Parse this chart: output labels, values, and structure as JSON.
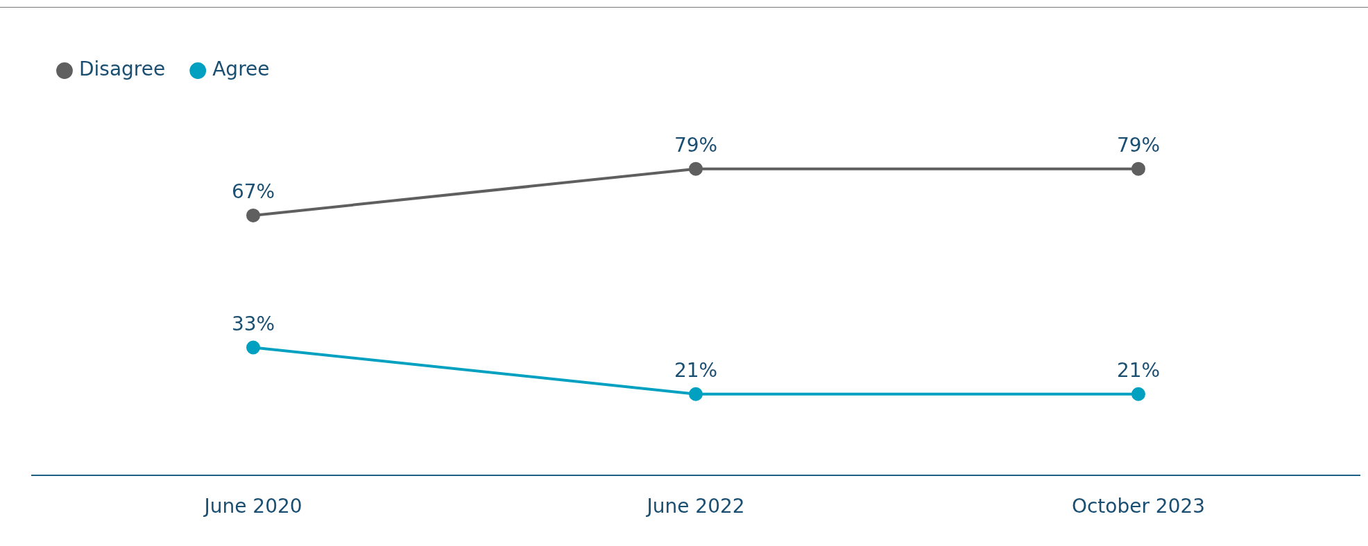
{
  "chart_data": {
    "type": "line",
    "categories": [
      "June 2020",
      "June 2022",
      "October 2023"
    ],
    "series": [
      {
        "name": "Disagree",
        "color": "#5f5f5f",
        "values": [
          67,
          79,
          79
        ],
        "value_labels": [
          "67%",
          "79%",
          "79%"
        ]
      },
      {
        "name": "Agree",
        "color": "#00a0c0",
        "values": [
          33,
          21,
          21
        ],
        "value_labels": [
          "33%",
          "21%",
          "21%"
        ]
      }
    ],
    "tick_labels": "x",
    "grid": false,
    "legend": "top left",
    "marker": "circle",
    "line_style": "solid"
  }
}
